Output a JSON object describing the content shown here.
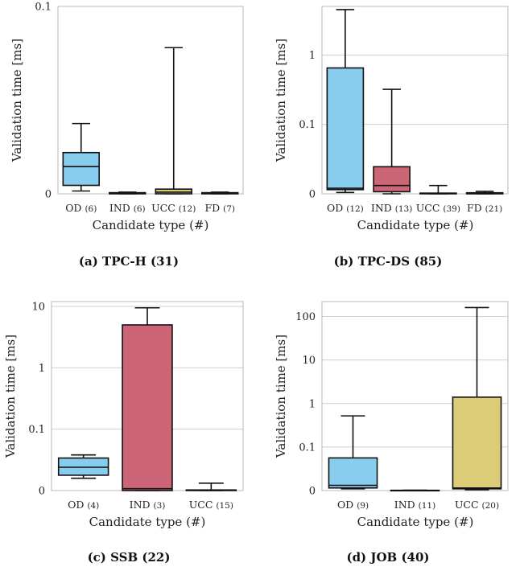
{
  "chart_data": [
    {
      "type": "box",
      "caption": "(a) TPC-H (31)",
      "xlabel": "Candidate type (#)",
      "ylabel": "Validation time [ms]",
      "scale": "symlog",
      "linthresh": 0.1,
      "ylim": [
        0,
        0.1
      ],
      "yticks": [
        {
          "value": 0,
          "label": "0"
        },
        {
          "value": 0.1,
          "label": "0.1"
        }
      ],
      "grid": "horizontal",
      "categories": [
        {
          "name": "OD",
          "count": "(6)",
          "color": "#88ccee",
          "q1": 0.0045,
          "median": 0.0145,
          "q3": 0.022,
          "min": 0.0015,
          "max": 0.0375
        },
        {
          "name": "IND",
          "count": "(6)",
          "color": "#cc6677",
          "q1": 0.0,
          "median": 0.0003,
          "q3": 0.0006,
          "min": 0.0,
          "max": 0.0009
        },
        {
          "name": "UCC",
          "count": "(12)",
          "color": "#ddcc77",
          "q1": 0.0,
          "median": 0.0009,
          "q3": 0.0025,
          "min": 0.0,
          "max": 0.078
        },
        {
          "name": "FD",
          "count": "(7)",
          "color": "#88ccee",
          "q1": 0.0,
          "median": 0.0003,
          "q3": 0.0006,
          "min": 0.0,
          "max": 0.0009
        }
      ]
    },
    {
      "type": "box",
      "caption": "(b) TPC-DS (85)",
      "xlabel": "Candidate type (#)",
      "ylabel": "Validation time [ms]",
      "scale": "symlog",
      "linthresh": 0.1,
      "ylim": [
        0,
        5
      ],
      "yticks": [
        {
          "value": 0,
          "label": "0"
        },
        {
          "value": 0.1,
          "label": "0.1"
        },
        {
          "value": 1,
          "label": "1"
        }
      ],
      "grid": "horizontal",
      "categories": [
        {
          "name": "OD",
          "count": "(12)",
          "color": "#88ccee",
          "q1": 0.006,
          "median": 0.008,
          "q3": 0.65,
          "min": 0.002,
          "max": 4.5
        },
        {
          "name": "IND",
          "count": "(13)",
          "color": "#cc6677",
          "q1": 0.003,
          "median": 0.012,
          "q3": 0.039,
          "min": 0.0,
          "max": 0.32
        },
        {
          "name": "UCC",
          "count": "(39)",
          "color": "#ddcc77",
          "q1": 0.0,
          "median": 0.0005,
          "q3": 0.001,
          "min": 0.0,
          "max": 0.012
        },
        {
          "name": "FD",
          "count": "(21)",
          "color": "#88ccee",
          "q1": 0.0,
          "median": 0.0008,
          "q3": 0.0015,
          "min": 0.0,
          "max": 0.0035
        }
      ]
    },
    {
      "type": "box",
      "caption": "(c) SSB (22)",
      "xlabel": "Candidate type (#)",
      "ylabel": "Validation time [ms]",
      "scale": "symlog",
      "linthresh": 0.1,
      "ylim": [
        0,
        12
      ],
      "yticks": [
        {
          "value": 0,
          "label": "0"
        },
        {
          "value": 0.1,
          "label": "0.1"
        },
        {
          "value": 1,
          "label": "1"
        },
        {
          "value": 10,
          "label": "10"
        }
      ],
      "grid": "horizontal",
      "categories": [
        {
          "name": "OD",
          "count": "(4)",
          "color": "#88ccee",
          "q1": 0.025,
          "median": 0.038,
          "q3": 0.053,
          "min": 0.02,
          "max": 0.058
        },
        {
          "name": "IND",
          "count": "(3)",
          "color": "#cc6677",
          "q1": 0.0,
          "median": 0.003,
          "q3": 5.0,
          "min": 0.0,
          "max": 9.5
        },
        {
          "name": "UCC",
          "count": "(15)",
          "color": "#ddcc77",
          "q1": 0.0,
          "median": 0.0005,
          "q3": 0.001,
          "min": 0.0,
          "max": 0.012
        }
      ]
    },
    {
      "type": "box",
      "caption": "(d) JOB (40)",
      "xlabel": "Candidate type (#)",
      "ylabel": "Validation time [ms]",
      "scale": "symlog",
      "linthresh": 0.1,
      "ylim": [
        0,
        220
      ],
      "yticks": [
        {
          "value": 0,
          "label": "0"
        },
        {
          "value": 0.1,
          "label": "0.1"
        },
        {
          "value": 1,
          "label": "1"
        },
        {
          "value": 10,
          "label": "10"
        },
        {
          "value": 100,
          "label": "100"
        }
      ],
      "grid": "horizontal",
      "categories": [
        {
          "name": "OD",
          "count": "(9)",
          "color": "#88ccee",
          "q1": 0.006,
          "median": 0.012,
          "q3": 0.075,
          "min": 0.004,
          "max": 0.52
        },
        {
          "name": "IND",
          "count": "(11)",
          "color": "#cc6677",
          "q1": 0.0,
          "median": 0.0003,
          "q3": 0.0006,
          "min": 0.0,
          "max": 0.0009
        },
        {
          "name": "UCC",
          "count": "(20)",
          "color": "#ddcc77",
          "q1": 0.004,
          "median": 0.006,
          "q3": 1.4,
          "min": 0.002,
          "max": 160
        }
      ]
    }
  ]
}
